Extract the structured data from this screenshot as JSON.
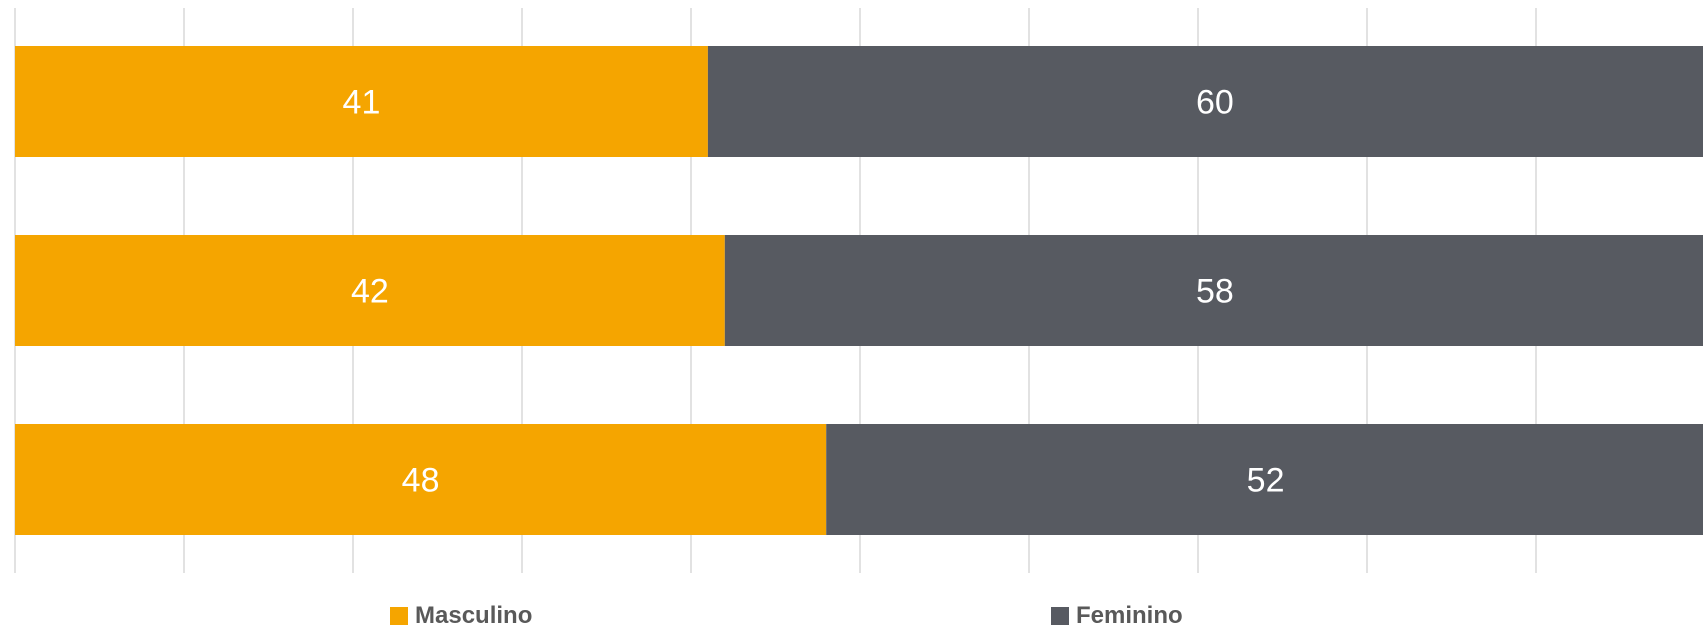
{
  "chart_data": {
    "type": "bar",
    "orientation": "horizontal",
    "stacked": true,
    "categories": [
      "",
      "",
      ""
    ],
    "series": [
      {
        "name": "Masculino",
        "values": [
          41,
          42,
          48
        ],
        "color": "#F5A500"
      },
      {
        "name": "Feminino",
        "values": [
          60,
          58,
          52
        ],
        "color": "#575A61"
      }
    ],
    "xlim": [
      0,
      100
    ],
    "grid": true,
    "legend_position": "bottom",
    "title": "",
    "xlabel": "",
    "ylabel": ""
  }
}
